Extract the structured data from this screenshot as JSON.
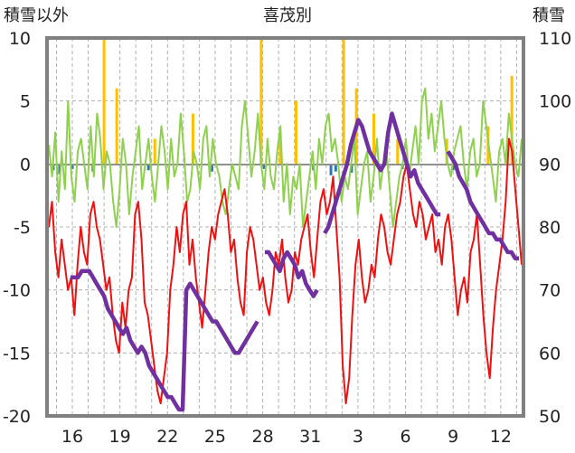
{
  "chart_data": {
    "type": "line",
    "title": "喜茂別",
    "left_axis_label": "積雪以外",
    "right_axis_label": "積雪",
    "left_ylim": [
      -20,
      10
    ],
    "right_ylim": [
      50,
      110
    ],
    "left_ticks": [
      "10",
      "5",
      "0",
      "-5",
      "-10",
      "-15",
      "-20"
    ],
    "right_ticks": [
      "110",
      "100",
      "90",
      "80",
      "70",
      "60",
      "50"
    ],
    "x_ticks": [
      "16",
      "19",
      "22",
      "25",
      "28",
      "31",
      "3",
      "6",
      "9",
      "12"
    ],
    "grid": true,
    "colors": {
      "temp_max": "#8fd14f",
      "temp_min": "#ee1111",
      "snow_depth": "#7030a0",
      "precip_bar": "#ffc000",
      "snowfall_bar": "#2e75b6",
      "frame": "#808080"
    },
    "series": [
      {
        "axis": "left",
        "color_key": "temp_max",
        "values": [
          1.5,
          -1,
          2.5,
          -3,
          1,
          -2,
          5,
          -1,
          -3,
          1,
          2,
          0,
          -2,
          3,
          -1,
          4,
          2,
          -2,
          1,
          0,
          -3,
          -5,
          -2,
          2,
          0,
          -4,
          -1,
          1,
          3,
          -2,
          0,
          2,
          -1,
          -3,
          0,
          3,
          1,
          -2,
          2,
          -1,
          0,
          4,
          1,
          -3,
          -2,
          1,
          0,
          -2,
          2,
          3,
          -1,
          2,
          0,
          -1,
          -3,
          -4,
          -2,
          0,
          -1,
          -2,
          3,
          5,
          2,
          -1,
          1,
          4,
          0,
          -2,
          2,
          -1,
          -2,
          1,
          3,
          -3,
          0,
          -4,
          -1,
          -2,
          0,
          -5,
          -3,
          -1,
          1,
          -2,
          2,
          0,
          3,
          4,
          1,
          2,
          0,
          -3,
          -1,
          -2,
          0,
          2,
          -4,
          -2,
          0,
          1,
          -3,
          -1,
          2,
          -2,
          0,
          1,
          -2,
          -5,
          -3,
          -1,
          0,
          2,
          -1,
          1,
          3,
          0,
          5,
          6,
          2,
          4,
          1,
          3,
          5,
          2,
          0,
          -1,
          1,
          2,
          3,
          0,
          -2,
          1,
          2,
          -1,
          0,
          5,
          3,
          1,
          -1,
          -3,
          1,
          2,
          0,
          4,
          2,
          0,
          -1,
          2
        ]
      },
      {
        "axis": "left",
        "color_key": "temp_min",
        "values": [
          -5,
          -3,
          -7,
          -9,
          -6,
          -8,
          -10,
          -9,
          -12,
          -8,
          -5,
          -7,
          -8,
          -4,
          -3,
          -5,
          -6,
          -8,
          -10,
          -9,
          -12,
          -14,
          -15,
          -11,
          -13,
          -10,
          -9,
          -4,
          -3,
          -6,
          -11,
          -12,
          -14,
          -16,
          -18,
          -19,
          -17,
          -15,
          -10,
          -8,
          -5,
          -7,
          -4,
          -3,
          -8,
          -6,
          -9,
          -11,
          -13,
          -10,
          -7,
          -5,
          -6,
          -4,
          -3,
          -2,
          -4,
          -7,
          -6,
          -9,
          -11,
          -12,
          -7,
          -5,
          -6,
          -8,
          -10,
          -9,
          -11,
          -12,
          -10,
          -7,
          -8,
          -6,
          -9,
          -11,
          -10,
          -7,
          -8,
          -6,
          -5,
          -4,
          -7,
          -9,
          -6,
          -3,
          -2,
          -4,
          -3,
          -1,
          -5,
          -9,
          -16,
          -19,
          -17,
          -12,
          -8,
          -6,
          -9,
          -11,
          -10,
          -8,
          -9,
          -6,
          -4,
          -5,
          -7,
          -8,
          -6,
          -4,
          -3,
          -1,
          0,
          -2,
          -4,
          -5,
          -3,
          -4,
          -6,
          -5,
          -4,
          -7,
          -6,
          -8,
          -5,
          -4,
          -6,
          -9,
          -12,
          -10,
          -9,
          -11,
          -7,
          -6,
          -4,
          -8,
          -12,
          -15,
          -17,
          -13,
          -10,
          -8,
          -6,
          -3,
          2,
          1,
          -2,
          -5,
          -8
        ]
      },
      {
        "axis": "right",
        "color_key": "snow_depth",
        "values": [
          72,
          72,
          72,
          73,
          73,
          73,
          72,
          71,
          70,
          69,
          67,
          66,
          65,
          64,
          63,
          64,
          62,
          61,
          60,
          61,
          60,
          58,
          57,
          56,
          55,
          54,
          53,
          53,
          52,
          51,
          51,
          70,
          71,
          70,
          69,
          68,
          67,
          66,
          65,
          65,
          64,
          63,
          62,
          61,
          60,
          60,
          61,
          62,
          63,
          64,
          65,
          null,
          76,
          76,
          75,
          74,
          73,
          75,
          76,
          75,
          74,
          72,
          73,
          71,
          70,
          69,
          70,
          null,
          79,
          80,
          82,
          84,
          86,
          88,
          90,
          93,
          95,
          97,
          96,
          94,
          92,
          91,
          90,
          89,
          90,
          95,
          98,
          96,
          94,
          92,
          90,
          88,
          89,
          87,
          86,
          85,
          84,
          83,
          82,
          82,
          null,
          92,
          91,
          90,
          88,
          87,
          86,
          84,
          83,
          82,
          81,
          80,
          79,
          79,
          78,
          78,
          77,
          76,
          76,
          75,
          75
        ]
      },
      {
        "axis": "left",
        "color_key": "precip_bar",
        "bars": [
          {
            "x": 18,
            "v": 10
          },
          {
            "x": 18.8,
            "v": 6
          },
          {
            "x": 21.2,
            "v": 2
          },
          {
            "x": 23.6,
            "v": 4
          },
          {
            "x": 27.9,
            "v": 10
          },
          {
            "x": 29.1,
            "v": 2.5
          },
          {
            "x": 30.1,
            "v": 5
          },
          {
            "x": 33.1,
            "v": 10
          },
          {
            "x": 33.9,
            "v": 6
          },
          {
            "x": 35.0,
            "v": 4
          },
          {
            "x": 36.5,
            "v": 2
          },
          {
            "x": 39.6,
            "v": 2
          },
          {
            "x": 42.2,
            "v": 3
          },
          {
            "x": 43.7,
            "v": 7
          }
        ]
      },
      {
        "axis": "left",
        "color_key": "snowfall_bar",
        "bars": [
          {
            "x": 14.8,
            "v": -0.5
          },
          {
            "x": 15.2,
            "v": -0.8
          },
          {
            "x": 16.0,
            "v": -0.4
          },
          {
            "x": 17.3,
            "v": -0.6
          },
          {
            "x": 20.8,
            "v": -0.5
          },
          {
            "x": 24.8,
            "v": -0.6
          },
          {
            "x": 28.1,
            "v": -0.4
          },
          {
            "x": 31.2,
            "v": -0.5
          },
          {
            "x": 32.3,
            "v": -0.9
          },
          {
            "x": 32.6,
            "v": -0.6
          },
          {
            "x": 33.6,
            "v": -0.7
          },
          {
            "x": 36.8,
            "v": -0.4
          },
          {
            "x": 40.0,
            "v": -0.5
          }
        ]
      }
    ]
  }
}
